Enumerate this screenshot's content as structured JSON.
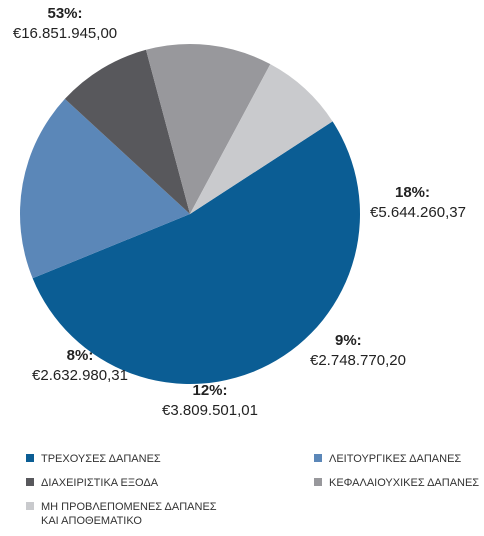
{
  "chart_data": {
    "type": "pie",
    "categories": [
      "ΤΡΕΧΟΥΣΕΣ ΔΑΠΑΝΕΣ",
      "ΛΕΙΤΟΥΡΓΙΚΕΣ ΔΑΠΑΝΕΣ",
      "ΔΙΑΧΕΙΡΙΣΤΙΚΑ ΕΞΟΔΑ",
      "ΚΕΦΑΛΑΙΟΥΧΙΚΕΣ ΔΑΠΑΝΕΣ",
      "ΜΗ ΠΡΟΒΛΕΠΟΜΕΝΕΣ ΔΑΠΑΝΕΣ ΚΑΙ ΑΠΟΘΕΜΑΤΙΚΟ"
    ],
    "values": [
      53,
      18,
      9,
      12,
      8
    ],
    "value_labels": [
      "53%:",
      "18%:",
      "9%:",
      "12%:",
      "8%:"
    ],
    "amount_labels": [
      "€16.851.945,00",
      "€5.644.260,37",
      "€2.748.770,20",
      "€3.809.501,01",
      "€2.632.980,31"
    ],
    "colors": [
      "#0b5d94",
      "#5b87b8",
      "#58585c",
      "#98989c",
      "#c9cacd"
    ],
    "legend": "bottom"
  }
}
